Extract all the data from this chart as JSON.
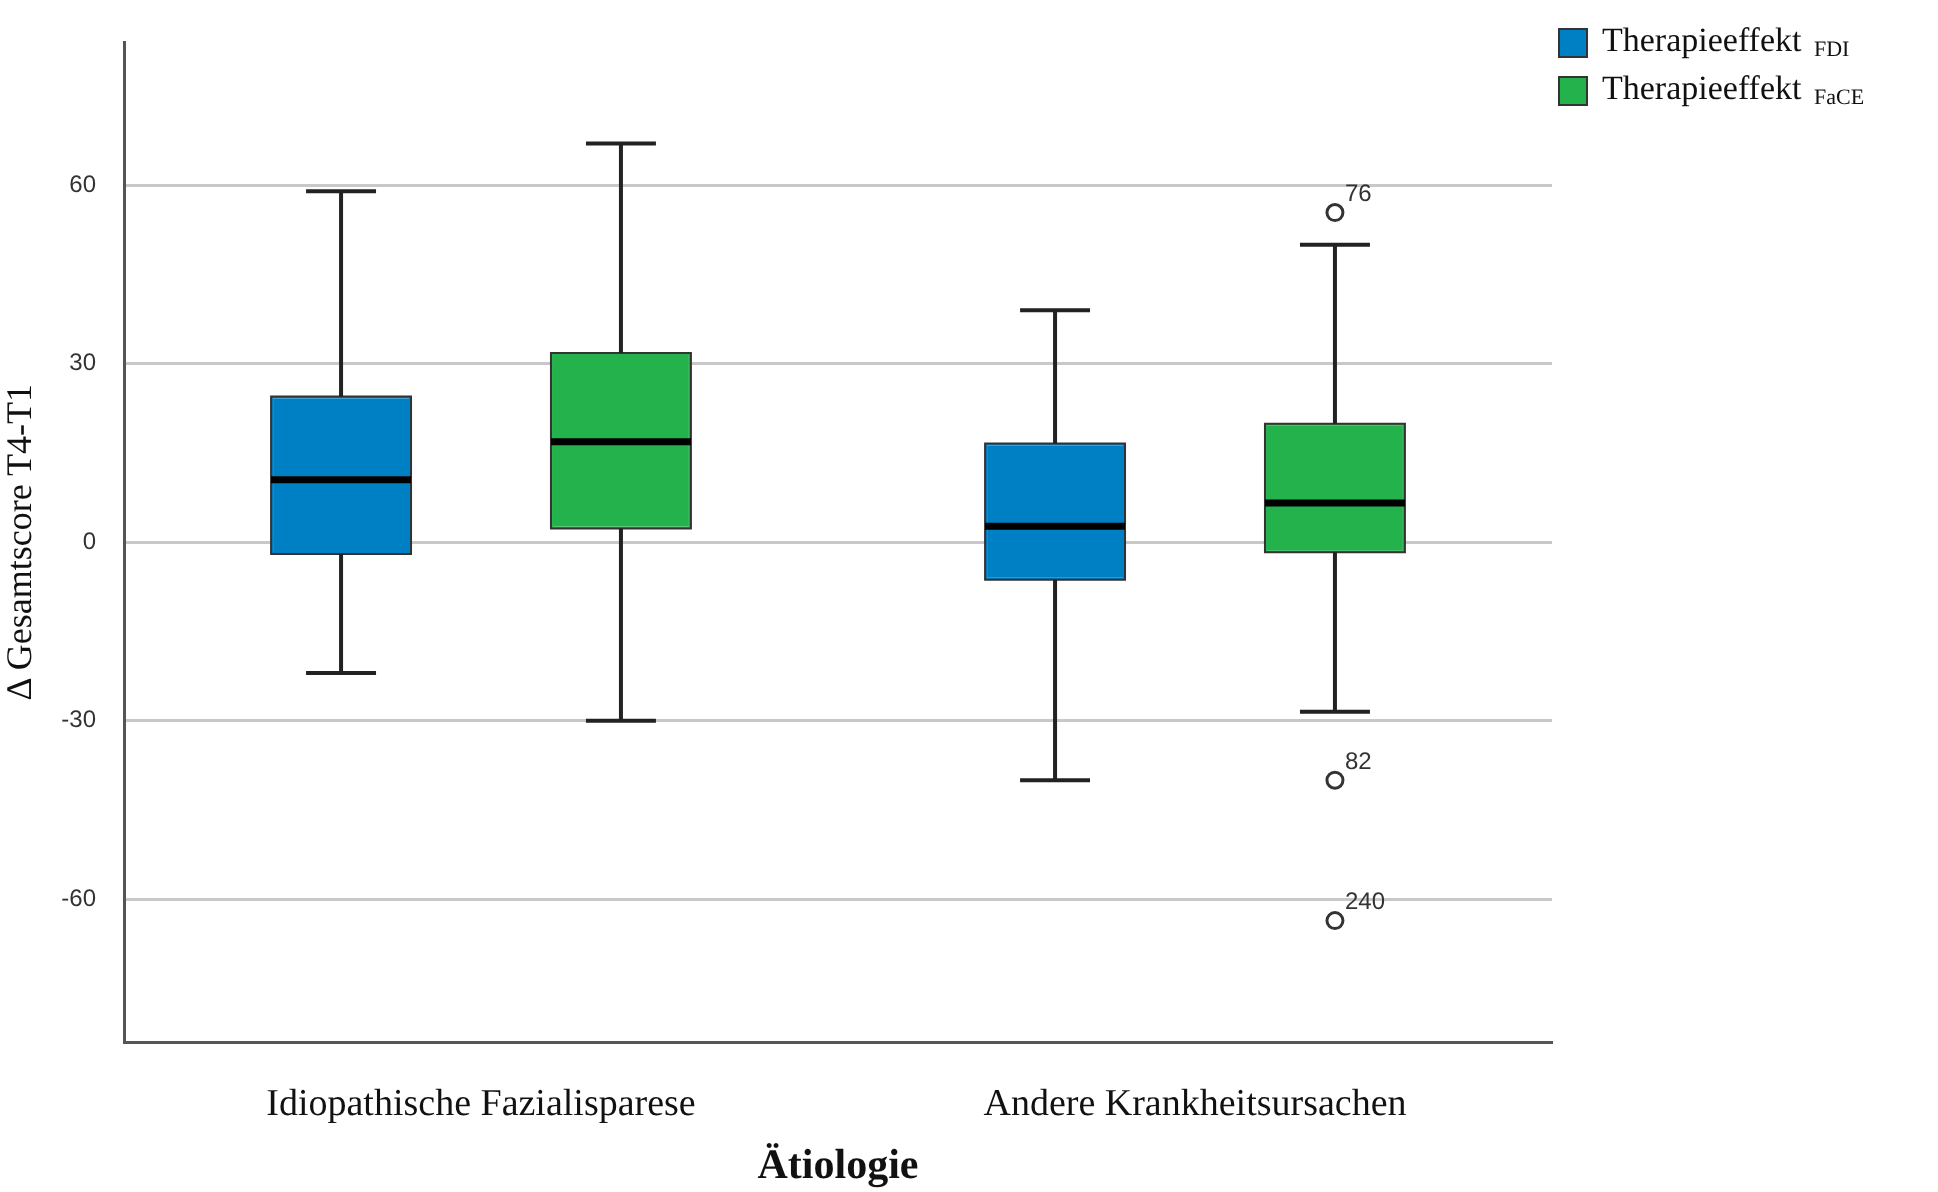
{
  "chart_data": {
    "type": "box",
    "xlabel": "Ätiologie",
    "ylabel": "Δ Gesamtscore T4-T1",
    "categories": [
      "Idiopathische Fazialisparese",
      "Andere Krankheitsursachen"
    ],
    "series": [
      {
        "name": "Therapieeffekt $_{FDI}$",
        "color": "#0080c4",
        "boxes": [
          {
            "low": -22,
            "q1": -2,
            "median": 10.5,
            "q3": 24.5,
            "high": 59
          },
          {
            "low": -40,
            "q1": -6.3,
            "median": 2.7,
            "q3": 16.6,
            "high": 39
          }
        ]
      },
      {
        "name": "Therapieeffekt $_{FaCE}$",
        "color": "#23b24b",
        "boxes": [
          {
            "low": -30,
            "q1": 2.3,
            "median": 16.9,
            "q3": 31.8,
            "high": 67
          },
          {
            "low": -28.5,
            "q1": -1.7,
            "median": 6.6,
            "q3": 19.9,
            "high": 50,
            "outliers": [
              55.4,
              -40,
              -63.6
            ]
          }
        ]
      }
    ],
    "ylim": [
      -84,
      84
    ],
    "yticks": [
      -60,
      -30,
      0,
      30,
      60
    ],
    "grid": "y",
    "legend": "top right",
    "annotations": [
      "76",
      "82",
      "240"
    ]
  }
}
